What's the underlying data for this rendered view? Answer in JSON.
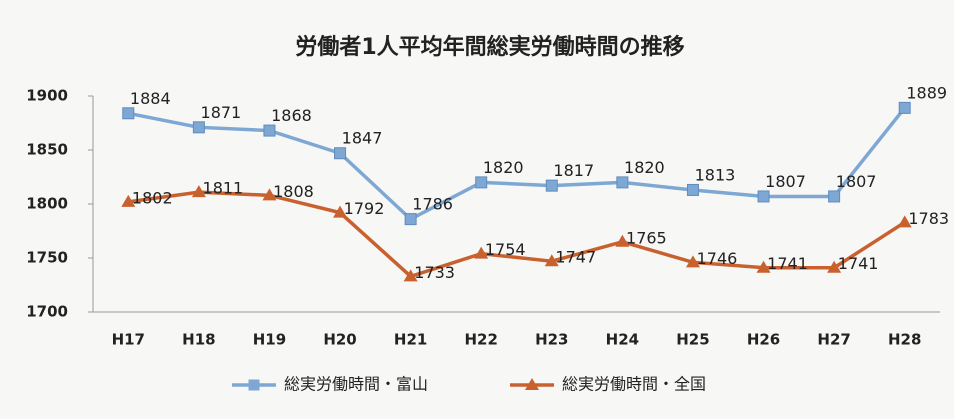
{
  "chart_data": {
    "type": "line",
    "title": "労働者1人平均年間総実労働時間の推移",
    "categories": [
      "H17",
      "H18",
      "H19",
      "H20",
      "H21",
      "H22",
      "H23",
      "H24",
      "H25",
      "H26",
      "H27",
      "H28"
    ],
    "series": [
      {
        "name": "総実労働時間・富山",
        "color": "#7ea7d3",
        "marker": "square",
        "values": [
          1884,
          1871,
          1868,
          1847,
          1786,
          1820,
          1817,
          1820,
          1813,
          1807,
          1807,
          1889
        ]
      },
      {
        "name": "総実労働時間・全国",
        "color": "#c9612f",
        "marker": "triangle",
        "values": [
          1802,
          1811,
          1808,
          1792,
          1733,
          1754,
          1747,
          1765,
          1746,
          1741,
          1741,
          1783
        ]
      }
    ],
    "ylim": [
      1700,
      1900
    ],
    "yticks": [
      1700,
      1750,
      1800,
      1850,
      1900
    ],
    "grid": false,
    "legend": "bottom"
  }
}
